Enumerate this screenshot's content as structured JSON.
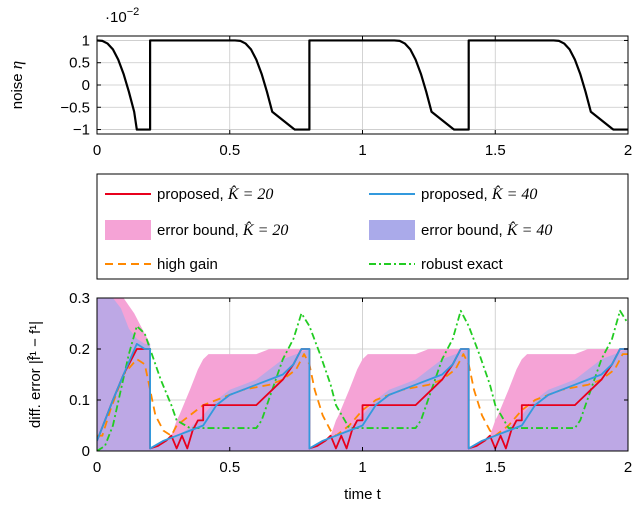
{
  "chart_data": [
    {
      "type": "line",
      "ylabel_text": "noise ",
      "ylabel_symbol": "η",
      "scale_base": "·10",
      "scale_exp": "−2",
      "xlim": [
        0,
        2
      ],
      "ylim": [
        -1.1,
        1.1
      ],
      "grid": true,
      "xticks": [
        0,
        0.5,
        1,
        1.5,
        2
      ],
      "xtick_labels": [
        "0",
        "0.5",
        "1",
        "1.5",
        "2"
      ],
      "yticks": [
        1,
        0.5,
        0,
        -0.5,
        -1
      ],
      "ytick_labels": [
        "1",
        "0.5",
        "0",
        "−0.5",
        "−1"
      ],
      "series": [
        {
          "color": "#000000",
          "x": [
            0,
            0.02,
            0.04,
            0.06,
            0.08,
            0.1,
            0.12,
            0.14,
            0.15,
            0.19,
            0.2,
            0.2,
            0.52,
            0.54,
            0.56,
            0.58,
            0.6,
            0.62,
            0.64,
            0.66,
            0.74,
            0.745,
            0.79,
            0.8,
            0.8,
            1.12,
            1.14,
            1.16,
            1.18,
            1.2,
            1.22,
            1.24,
            1.26,
            1.34,
            1.345,
            1.39,
            1.4,
            1.4,
            1.72,
            1.74,
            1.76,
            1.78,
            1.8,
            1.82,
            1.84,
            1.86,
            1.94,
            1.945,
            1.99,
            2.0
          ],
          "y": [
            1.0,
            0.99,
            0.93,
            0.8,
            0.57,
            0.25,
            -0.15,
            -0.6,
            -1.0,
            -1.0,
            -1.0,
            1.0,
            1.0,
            0.99,
            0.93,
            0.8,
            0.57,
            0.25,
            -0.15,
            -0.6,
            -0.98,
            -1.0,
            -1.0,
            -1.0,
            1.0,
            1.0,
            0.99,
            0.93,
            0.8,
            0.57,
            0.25,
            -0.15,
            -0.6,
            -0.98,
            -1.0,
            -1.0,
            -1.0,
            1.0,
            1.0,
            0.99,
            0.93,
            0.8,
            0.57,
            0.25,
            -0.15,
            -0.6,
            -0.98,
            -1.0,
            -1.0,
            -1.0
          ]
        }
      ]
    },
    {
      "type": "line",
      "xlabel": "time t",
      "ylabel": "diff. error |f̂¹ − f¹|",
      "xlim": [
        0,
        2
      ],
      "ylim": [
        0,
        0.3
      ],
      "grid": true,
      "xticks": [
        0,
        0.5,
        1,
        1.5,
        2
      ],
      "xtick_labels": [
        "0",
        "0.5",
        "1",
        "1.5",
        "2"
      ],
      "yticks": [
        0,
        0.1,
        0.2,
        0.3
      ],
      "ytick_labels": [
        "0",
        "0.1",
        "0.2",
        "0.3"
      ],
      "bands": [
        {
          "name": "error bound, K̂ = 20",
          "color": "#f5a3d6",
          "x": [
            0,
            0.02,
            0.04,
            0.06,
            0.1,
            0.14,
            0.17,
            0.2,
            0.2,
            0.24,
            0.28,
            0.3,
            0.31,
            0.35,
            0.38,
            0.4,
            0.42,
            0.44,
            0.46,
            0.5,
            0.55,
            0.6,
            0.65,
            0.7,
            0.75,
            0.8,
            0.8,
            0.84,
            0.88,
            0.9,
            0.91,
            0.95,
            0.98,
            1.0,
            1.02,
            1.04,
            1.06,
            1.1,
            1.15,
            1.2,
            1.25,
            1.3,
            1.35,
            1.4,
            1.4,
            1.44,
            1.48,
            1.5,
            1.51,
            1.55,
            1.58,
            1.6,
            1.62,
            1.64,
            1.66,
            1.7,
            1.75,
            1.8,
            1.85,
            1.9,
            1.95,
            2.0
          ],
          "upper": [
            0.3,
            0.3,
            0.3,
            0.3,
            0.3,
            0.27,
            0.24,
            0.21,
            0.005,
            0.01,
            0.03,
            0.06,
            0.07,
            0.12,
            0.16,
            0.18,
            0.19,
            0.19,
            0.19,
            0.19,
            0.19,
            0.19,
            0.2,
            0.2,
            0.2,
            0.2,
            0.005,
            0.01,
            0.03,
            0.06,
            0.07,
            0.12,
            0.16,
            0.18,
            0.19,
            0.19,
            0.19,
            0.19,
            0.19,
            0.19,
            0.2,
            0.2,
            0.2,
            0.2,
            0.005,
            0.01,
            0.03,
            0.06,
            0.07,
            0.12,
            0.16,
            0.18,
            0.19,
            0.19,
            0.19,
            0.19,
            0.19,
            0.19,
            0.2,
            0.2,
            0.2,
            0.2
          ]
        },
        {
          "name": "error bound, K̂ = 40",
          "color": "#aaaaea",
          "x": [
            0,
            0.03,
            0.06,
            0.09,
            0.12,
            0.15,
            0.18,
            0.2,
            0.2,
            0.25,
            0.3,
            0.35,
            0.4,
            0.45,
            0.5,
            0.55,
            0.6,
            0.65,
            0.7,
            0.75,
            0.8,
            0.8,
            0.85,
            0.9,
            0.95,
            1.0,
            1.05,
            1.1,
            1.15,
            1.2,
            1.25,
            1.3,
            1.35,
            1.4,
            1.4,
            1.45,
            1.5,
            1.55,
            1.6,
            1.65,
            1.7,
            1.75,
            1.8,
            1.85,
            1.9,
            1.95,
            2.0
          ],
          "upper": [
            0.3,
            0.3,
            0.3,
            0.28,
            0.24,
            0.22,
            0.21,
            0.21,
            0.005,
            0.02,
            0.03,
            0.045,
            0.07,
            0.1,
            0.12,
            0.13,
            0.14,
            0.16,
            0.18,
            0.19,
            0.2,
            0.005,
            0.02,
            0.03,
            0.045,
            0.07,
            0.1,
            0.12,
            0.13,
            0.14,
            0.16,
            0.18,
            0.19,
            0.2,
            0.005,
            0.02,
            0.03,
            0.045,
            0.07,
            0.1,
            0.12,
            0.13,
            0.14,
            0.16,
            0.18,
            0.19,
            0.2
          ]
        }
      ],
      "series": [
        {
          "name": "high gain",
          "color": "#ff8800",
          "dash": "8,5",
          "x": [
            0,
            0.02,
            0.05,
            0.1,
            0.15,
            0.18,
            0.2,
            0.22,
            0.25,
            0.28,
            0.3,
            0.35,
            0.4,
            0.45,
            0.5,
            0.55,
            0.6,
            0.65,
            0.7,
            0.75,
            0.78,
            0.8,
            0.82,
            0.85,
            0.88,
            0.9,
            0.95,
            1.0,
            1.05,
            1.1,
            1.15,
            1.2,
            1.25,
            1.3,
            1.35,
            1.38,
            1.4,
            1.42,
            1.45,
            1.48,
            1.5,
            1.55,
            1.6,
            1.65,
            1.7,
            1.75,
            1.8,
            1.85,
            1.9,
            1.95,
            1.98,
            2.0
          ],
          "y": [
            0.03,
            0.03,
            0.08,
            0.15,
            0.18,
            0.17,
            0.12,
            0.07,
            0.04,
            0.03,
            0.05,
            0.07,
            0.09,
            0.1,
            0.11,
            0.12,
            0.125,
            0.13,
            0.14,
            0.16,
            0.19,
            0.17,
            0.12,
            0.07,
            0.04,
            0.03,
            0.05,
            0.08,
            0.1,
            0.11,
            0.12,
            0.125,
            0.13,
            0.14,
            0.16,
            0.19,
            0.17,
            0.12,
            0.07,
            0.04,
            0.03,
            0.05,
            0.08,
            0.1,
            0.11,
            0.12,
            0.125,
            0.13,
            0.14,
            0.16,
            0.19,
            0.19
          ]
        },
        {
          "name": "robust exact",
          "color": "#22cc22",
          "dash": "7,3,2,3",
          "x": [
            0,
            0.03,
            0.06,
            0.09,
            0.12,
            0.15,
            0.18,
            0.2,
            0.24,
            0.28,
            0.3,
            0.35,
            0.4,
            0.45,
            0.5,
            0.55,
            0.6,
            0.62,
            0.66,
            0.7,
            0.74,
            0.77,
            0.8,
            0.84,
            0.88,
            0.9,
            0.95,
            1.0,
            1.05,
            1.1,
            1.15,
            1.2,
            1.22,
            1.26,
            1.3,
            1.34,
            1.37,
            1.4,
            1.44,
            1.48,
            1.5,
            1.55,
            1.6,
            1.65,
            1.7,
            1.75,
            1.8,
            1.82,
            1.86,
            1.9,
            1.94,
            1.97,
            2.0
          ],
          "y": [
            0.0,
            0.01,
            0.05,
            0.12,
            0.19,
            0.245,
            0.23,
            0.2,
            0.14,
            0.09,
            0.06,
            0.045,
            0.045,
            0.045,
            0.045,
            0.045,
            0.045,
            0.06,
            0.12,
            0.18,
            0.22,
            0.27,
            0.245,
            0.19,
            0.13,
            0.09,
            0.045,
            0.045,
            0.045,
            0.045,
            0.045,
            0.045,
            0.06,
            0.12,
            0.18,
            0.22,
            0.275,
            0.245,
            0.19,
            0.13,
            0.09,
            0.045,
            0.045,
            0.045,
            0.045,
            0.045,
            0.045,
            0.06,
            0.12,
            0.18,
            0.22,
            0.275,
            0.25
          ]
        },
        {
          "name": "proposed, K̂ = 20",
          "color": "#e8001c",
          "x": [
            0,
            0.03,
            0.06,
            0.1,
            0.15,
            0.18,
            0.2,
            0.2,
            0.23,
            0.26,
            0.28,
            0.3,
            0.32,
            0.34,
            0.36,
            0.38,
            0.4,
            0.4,
            0.45,
            0.5,
            0.55,
            0.6,
            0.62,
            0.66,
            0.7,
            0.74,
            0.77,
            0.8,
            0.8,
            0.83,
            0.86,
            0.88,
            0.9,
            0.92,
            0.94,
            0.96,
            0.98,
            1.0,
            1.0,
            1.05,
            1.1,
            1.15,
            1.2,
            1.22,
            1.26,
            1.3,
            1.34,
            1.37,
            1.4,
            1.4,
            1.43,
            1.46,
            1.48,
            1.5,
            1.52,
            1.54,
            1.56,
            1.58,
            1.6,
            1.6,
            1.65,
            1.7,
            1.75,
            1.8,
            1.82,
            1.86,
            1.9,
            1.94,
            1.97,
            2.0
          ],
          "y": [
            0.02,
            0.06,
            0.1,
            0.15,
            0.2,
            0.2,
            0.2,
            0.005,
            0.01,
            0.02,
            0.03,
            0.005,
            0.03,
            0.005,
            0.04,
            0.06,
            0.06,
            0.09,
            0.09,
            0.09,
            0.09,
            0.09,
            0.1,
            0.12,
            0.14,
            0.17,
            0.2,
            0.2,
            0.005,
            0.01,
            0.02,
            0.03,
            0.005,
            0.03,
            0.005,
            0.04,
            0.06,
            0.06,
            0.09,
            0.09,
            0.09,
            0.09,
            0.09,
            0.1,
            0.12,
            0.14,
            0.17,
            0.2,
            0.2,
            0.005,
            0.01,
            0.02,
            0.03,
            0.005,
            0.03,
            0.005,
            0.04,
            0.06,
            0.06,
            0.09,
            0.09,
            0.09,
            0.09,
            0.09,
            0.1,
            0.12,
            0.14,
            0.17,
            0.2,
            0.2
          ]
        },
        {
          "name": "proposed, K̂ = 40",
          "color": "#3399dd",
          "x": [
            0,
            0.03,
            0.06,
            0.1,
            0.15,
            0.18,
            0.2,
            0.2,
            0.25,
            0.3,
            0.35,
            0.4,
            0.45,
            0.5,
            0.55,
            0.6,
            0.65,
            0.7,
            0.74,
            0.77,
            0.8,
            0.8,
            0.85,
            0.9,
            0.95,
            1.0,
            1.05,
            1.1,
            1.15,
            1.2,
            1.25,
            1.3,
            1.34,
            1.37,
            1.4,
            1.4,
            1.45,
            1.5,
            1.55,
            1.6,
            1.65,
            1.7,
            1.75,
            1.8,
            1.85,
            1.9,
            1.94,
            1.97,
            2.0
          ],
          "y": [
            0.02,
            0.06,
            0.1,
            0.15,
            0.21,
            0.2,
            0.2,
            0.005,
            0.02,
            0.03,
            0.04,
            0.05,
            0.09,
            0.11,
            0.12,
            0.13,
            0.14,
            0.15,
            0.17,
            0.2,
            0.2,
            0.005,
            0.02,
            0.03,
            0.04,
            0.05,
            0.09,
            0.11,
            0.12,
            0.13,
            0.14,
            0.15,
            0.17,
            0.2,
            0.2,
            0.005,
            0.02,
            0.03,
            0.04,
            0.05,
            0.09,
            0.11,
            0.12,
            0.13,
            0.14,
            0.15,
            0.17,
            0.2,
            0.2
          ]
        }
      ],
      "legend": {
        "placement": "between panels",
        "entries": [
          {
            "label": "proposed, ",
            "math": "K̂ = 20",
            "kind": "line",
            "color": "#e8001c",
            "dash": ""
          },
          {
            "label": "proposed, ",
            "math": "K̂ = 40",
            "kind": "line",
            "color": "#3399dd",
            "dash": ""
          },
          {
            "label": "error bound, ",
            "math": "K̂ = 20",
            "kind": "area",
            "color": "#f5a3d6",
            "dash": ""
          },
          {
            "label": "error bound, ",
            "math": "K̂ = 40",
            "kind": "area",
            "color": "#aaaaea",
            "dash": ""
          },
          {
            "label": "high gain",
            "math": "",
            "kind": "line",
            "color": "#ff8800",
            "dash": "8,5"
          },
          {
            "label": "robust exact",
            "math": "",
            "kind": "line",
            "color": "#22cc22",
            "dash": "7,3,2,3"
          }
        ]
      }
    }
  ]
}
